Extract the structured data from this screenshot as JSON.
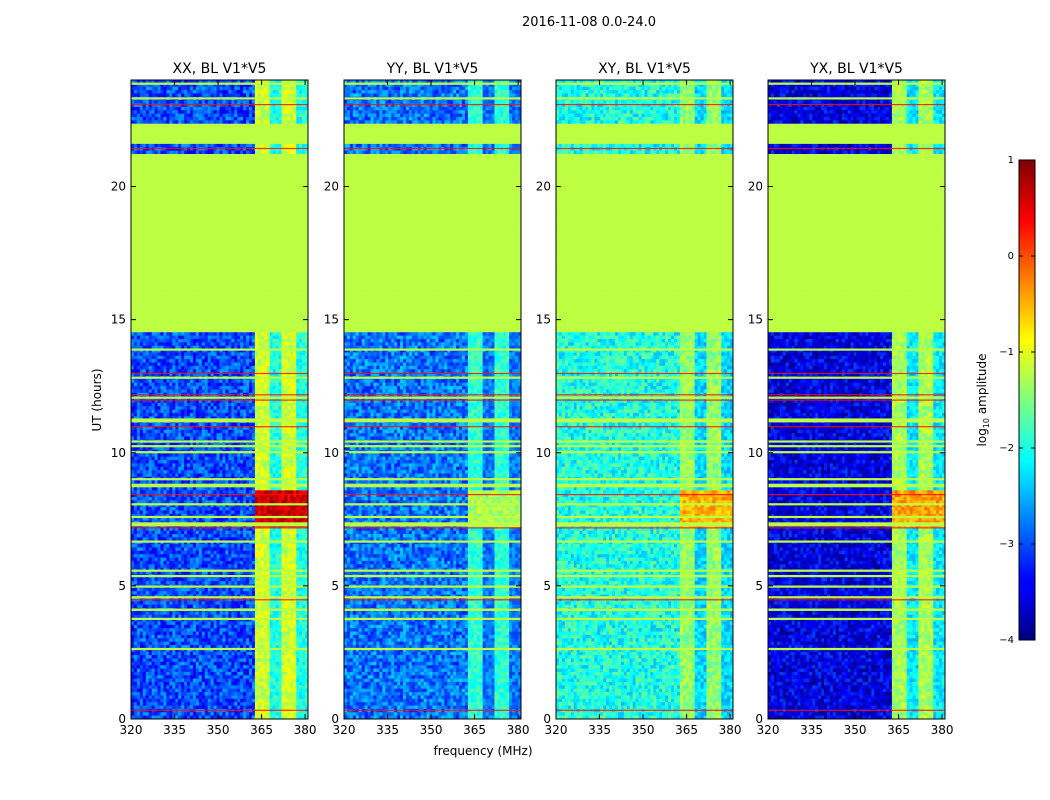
{
  "chart_data": {
    "type": "heatmap",
    "suptitle": "2016-11-08 0.0-24.0",
    "xlabel": "frequency (MHz)",
    "ylabel": "UT (hours)",
    "xlim": [
      320,
      381
    ],
    "ylim": [
      0,
      24
    ],
    "xticks": [
      320,
      335,
      350,
      365,
      380
    ],
    "yticks": [
      0,
      5,
      10,
      15,
      20
    ],
    "colorbar": {
      "label": "log10 amplitude",
      "label_base": "log",
      "label_sub": "10",
      "label_rest": " amplitude",
      "range": [
        -4,
        1
      ],
      "ticks": [
        -4,
        -3,
        -2,
        -1,
        0,
        1
      ],
      "tick_labels": [
        "−4",
        "−3",
        "−2",
        "−1",
        "0",
        "1"
      ],
      "colormap": "jet"
    },
    "flagged_value": -1.2,
    "flagged_time_ranges": [
      [
        14.5,
        21.2
      ],
      [
        21.6,
        22.4
      ]
    ],
    "rfi_band_MHz": [
      363,
      381
    ],
    "panels": [
      {
        "title": "XX, BL V1*V5",
        "background_log_amp": -3.0,
        "rfi_log_amp": -1.5,
        "flare_log_amp": 0.6
      },
      {
        "title": "YY, BL V1*V5",
        "background_log_amp": -2.8,
        "rfi_log_amp": -2.3,
        "flare_log_amp": -1.3
      },
      {
        "title": "XY, BL V1*V5",
        "background_log_amp": -2.0,
        "rfi_log_amp": -1.8,
        "flare_log_amp": -0.5
      },
      {
        "title": "YX, BL V1*V5",
        "background_log_amp": -3.5,
        "rfi_log_amp": -1.7,
        "flare_log_amp": -0.4
      }
    ]
  }
}
